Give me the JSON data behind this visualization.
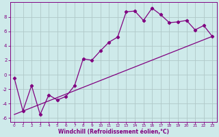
{
  "line1_x": [
    0,
    1,
    2,
    3,
    4,
    5,
    6,
    7,
    8,
    9,
    10,
    11,
    12,
    13,
    14,
    15,
    16,
    17,
    18,
    19,
    20,
    21,
    22,
    23
  ],
  "line1_y": [
    -0.5,
    -5.0,
    -1.5,
    -5.5,
    -2.8,
    -3.5,
    -3.0,
    -1.5,
    2.2,
    2.0,
    3.3,
    4.5,
    5.2,
    8.7,
    8.8,
    7.5,
    9.2,
    8.3,
    7.2,
    7.3,
    7.5,
    6.2,
    6.8,
    5.3
  ],
  "line2_x": [
    0,
    23
  ],
  "line2_y": [
    -5.5,
    5.3
  ],
  "color": "#800080",
  "bg_color": "#ceeaea",
  "grid_color": "#b0c8c8",
  "xlim": [
    -0.5,
    23.5
  ],
  "ylim": [
    -6.5,
    10.0
  ],
  "xlabel": "Windchill (Refroidissement éolien,°C)",
  "yticks": [
    -6,
    -4,
    -2,
    0,
    2,
    4,
    6,
    8
  ],
  "xticks": [
    0,
    1,
    2,
    3,
    4,
    5,
    6,
    7,
    8,
    9,
    10,
    11,
    12,
    13,
    14,
    15,
    16,
    17,
    18,
    19,
    20,
    21,
    22,
    23
  ],
  "marker": "D",
  "markersize": 2.2,
  "linewidth": 0.9
}
